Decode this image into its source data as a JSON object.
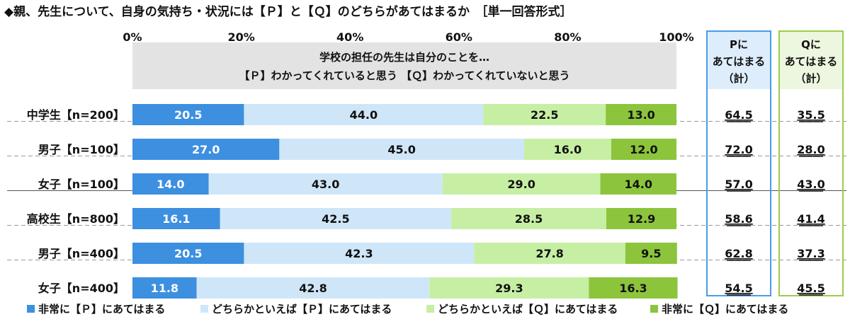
{
  "title": "◆親、先生について、自身の気持ち・状況には【Ｐ】と【Ｑ】のどちらがあてはまるか　［単一回答形式］",
  "chart_data": {
    "type": "bar",
    "stacked": true,
    "orientation": "horizontal",
    "x_ticks": [
      "0%",
      "20%",
      "40%",
      "60%",
      "80%",
      "100%"
    ],
    "xlim": [
      0,
      100
    ],
    "header_lines": [
      "学校の担任の先生は自分のことを…",
      "【Ｐ】わかってくれていると思う 【Ｑ】わかってくれていないと思う"
    ],
    "categories": [
      "中学生【n=200】",
      "男子【n=100】",
      "女子【n=100】",
      "高校生【n=800】",
      "男子【n=400】",
      "女子【n=400】"
    ],
    "series": [
      {
        "name": "非常に【Ｐ】にあてはまる",
        "color": "#3d8fe0",
        "label_color": "#ffffff",
        "values": [
          20.5,
          27.0,
          14.0,
          16.1,
          20.5,
          11.8
        ]
      },
      {
        "name": "どちらかといえば【Ｐ】にあてはまる",
        "color": "#cfe6f8",
        "label_color": "#111111",
        "values": [
          44.0,
          45.0,
          43.0,
          42.5,
          42.3,
          42.8
        ]
      },
      {
        "name": "どちらかといえば【Ｑ】にあてはまる",
        "color": "#c6efa4",
        "label_color": "#111111",
        "values": [
          22.5,
          16.0,
          29.0,
          28.5,
          27.8,
          29.3
        ]
      },
      {
        "name": "非常に【Ｑ】にあてはまる",
        "color": "#8cc43c",
        "label_color": "#111111",
        "values": [
          13.0,
          12.0,
          14.0,
          12.9,
          9.5,
          16.3
        ]
      }
    ],
    "summary_columns": [
      {
        "header": [
          "Pに",
          "あてはまる",
          "（計）"
        ],
        "border_color": "#4a9be8",
        "values": [
          "64.5",
          "72.0",
          "57.0",
          "58.6",
          "62.8",
          "54.5"
        ]
      },
      {
        "header": [
          "Qに",
          "あてはまる",
          "（計）"
        ],
        "border_color": "#9ccc4c",
        "values": [
          "35.5",
          "28.0",
          "43.0",
          "41.4",
          "37.3",
          "45.5"
        ]
      }
    ],
    "legend_position": "bottom"
  }
}
